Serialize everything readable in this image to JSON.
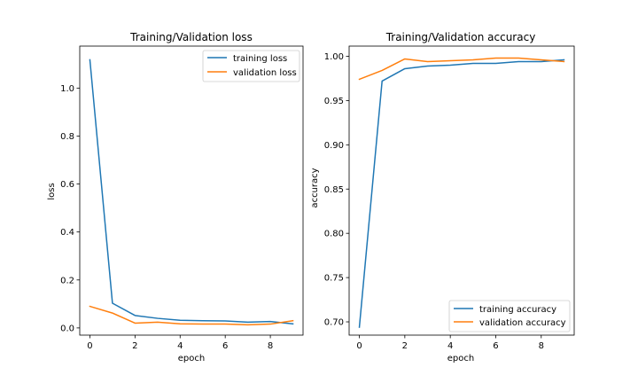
{
  "colors": {
    "training": "#1f77b4",
    "validation": "#ff7f0e",
    "axes": "#000000",
    "legend_border": "#cccccc"
  },
  "chart_data": [
    {
      "type": "line",
      "title": "Training/Validation loss",
      "xlabel": "epoch",
      "ylabel": "loss",
      "x": [
        0,
        1,
        2,
        3,
        4,
        5,
        6,
        7,
        8,
        9
      ],
      "xlim": [
        -0.45,
        9.45
      ],
      "ylim": [
        -0.03,
        1.175
      ],
      "xticks": [
        0,
        2,
        4,
        6,
        8
      ],
      "yticks": [
        0.0,
        0.2,
        0.4,
        0.6,
        0.8,
        1.0
      ],
      "ytick_format": 1,
      "grid": false,
      "legend_position": "upper right",
      "series": [
        {
          "name": "training loss",
          "color": "#1f77b4",
          "values": [
            1.118,
            0.103,
            0.052,
            0.04,
            0.032,
            0.03,
            0.029,
            0.024,
            0.027,
            0.017
          ]
        },
        {
          "name": "validation loss",
          "color": "#ff7f0e",
          "values": [
            0.09,
            0.062,
            0.02,
            0.024,
            0.017,
            0.016,
            0.016,
            0.013,
            0.016,
            0.03
          ]
        }
      ]
    },
    {
      "type": "line",
      "title": "Training/Validation accuracy",
      "xlabel": "epoch",
      "ylabel": "accuracy",
      "x": [
        0,
        1,
        2,
        3,
        4,
        5,
        6,
        7,
        8,
        9
      ],
      "xlim": [
        -0.45,
        9.45
      ],
      "ylim": [
        0.685,
        1.0115
      ],
      "xticks": [
        0,
        2,
        4,
        6,
        8
      ],
      "yticks": [
        0.7,
        0.75,
        0.8,
        0.85,
        0.9,
        0.95,
        1.0
      ],
      "ytick_format": 2,
      "grid": false,
      "legend_position": "lower right",
      "series": [
        {
          "name": "training accuracy",
          "color": "#1f77b4",
          "values": [
            0.694,
            0.972,
            0.986,
            0.989,
            0.99,
            0.992,
            0.992,
            0.994,
            0.994,
            0.996
          ]
        },
        {
          "name": "validation accuracy",
          "color": "#ff7f0e",
          "values": [
            0.974,
            0.984,
            0.997,
            0.994,
            0.995,
            0.996,
            0.998,
            0.998,
            0.996,
            0.994
          ]
        }
      ]
    }
  ]
}
